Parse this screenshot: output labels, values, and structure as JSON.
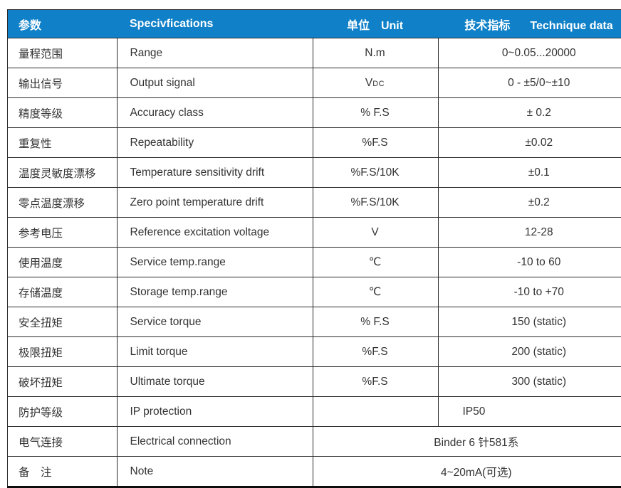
{
  "colors": {
    "header_bg": "#1081c8",
    "header_text": "#ffffff",
    "body_text": "#333333",
    "grid_border": "#2a2a2a",
    "bottom_border": "#0d0d0d"
  },
  "header": {
    "param_zh": "参数",
    "spec_en": "Specivfications",
    "unit_zh": "单位",
    "unit_en": "Unit",
    "tech_zh": "技术指标",
    "tech_en": "Technique data"
  },
  "rows": [
    {
      "param": "量程范围",
      "spec": "Range",
      "unit": "N.m",
      "value": "0~0.05...20000"
    },
    {
      "param": "输出信号",
      "spec": "Output signal",
      "unit": "V",
      "unit_sub": "DC",
      "value": "0 - ±5/0~±10"
    },
    {
      "param": "精度等级",
      "spec": "Accuracy class",
      "unit": "% F.S",
      "value": "± 0.2"
    },
    {
      "param": "重复性",
      "spec": "Repeatability",
      "unit": "%F.S",
      "value": "±0.02"
    },
    {
      "param": "温度灵敏度漂移",
      "spec": "Temperature sensitivity drift",
      "unit": "%F.S/10K",
      "value": "±0.1"
    },
    {
      "param": "零点温度漂移",
      "spec": "Zero point temperature drift",
      "unit": "%F.S/10K",
      "value": "±0.2"
    },
    {
      "param": "参考电压",
      "spec": "Reference excitation voltage",
      "unit": "V",
      "value": "12-28"
    },
    {
      "param": "使用温度",
      "spec": "Service temp.range",
      "unit": "℃",
      "value": "-10 to 60"
    },
    {
      "param": "存储温度",
      "spec": "Storage temp.range",
      "unit": "℃",
      "value": "-10 to +70"
    },
    {
      "param": "安全扭矩",
      "spec": "Service torque",
      "unit": "% F.S",
      "value": "150 (static)"
    },
    {
      "param": "极限扭矩",
      "spec": "Limit torque",
      "unit": "%F.S",
      "value": "200 (static)"
    },
    {
      "param": "破坏扭矩",
      "spec": "Ultimate torque",
      "unit": "%F.S",
      "value": "300 (static)"
    },
    {
      "param": "防护等级",
      "spec": "IP protection",
      "unit": "",
      "value": "IP50"
    },
    {
      "param": "电气连接",
      "spec": "Electrical connection",
      "value": "Binder 6 针581系",
      "merged": true
    },
    {
      "param": "备　注",
      "spec": "Note",
      "value": "4~20mA(可选)",
      "merged": true
    }
  ]
}
